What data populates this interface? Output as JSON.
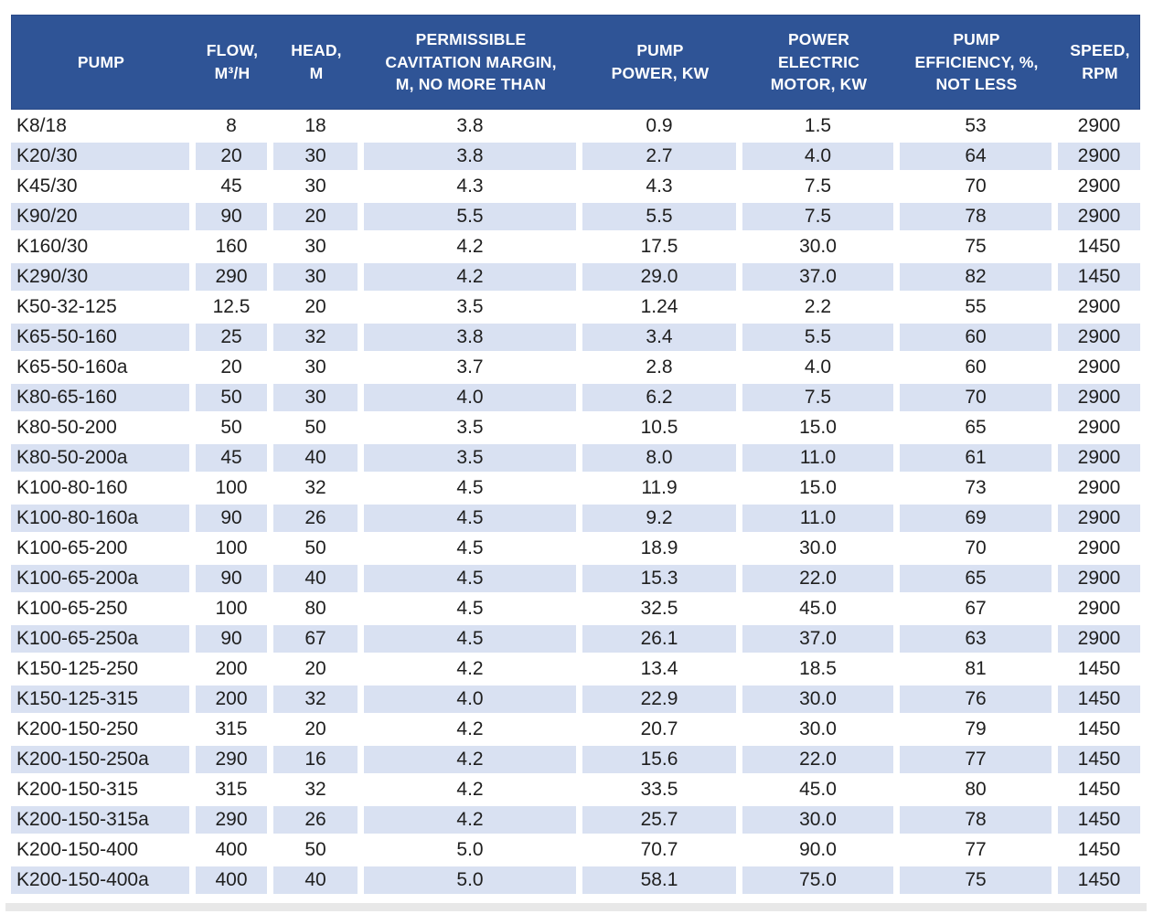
{
  "colors": {
    "header_bg": "#2F5496",
    "header_border": "#2A4A87",
    "header_text": "#FFFFFF",
    "row_bg": "#FFFFFF",
    "row_alt_bg": "#D9E1F2",
    "cell_text": "#1F1F1F",
    "footer_strip": "#E8E8E8"
  },
  "chart_data": {
    "type": "table",
    "columns": [
      {
        "key": "pump",
        "label": "PUMP"
      },
      {
        "key": "flow",
        "label": "FLOW,\nM³/H"
      },
      {
        "key": "head",
        "label": "HEAD,\nM"
      },
      {
        "key": "cavitation_margin",
        "label": "PERMISSIBLE\nCAVITATION MARGIN,\nM, NO MORE THAN"
      },
      {
        "key": "pump_power",
        "label": "PUMP\nPOWER, KW"
      },
      {
        "key": "motor_power",
        "label": "POWER\nELECTRIC\nMOTOR, KW"
      },
      {
        "key": "efficiency",
        "label": "PUMP\nEFFICIENCY, %,\nNOT LESS"
      },
      {
        "key": "speed",
        "label": "SPEED,\nRPM"
      }
    ],
    "rows": [
      [
        "K8/18",
        "8",
        "18",
        "3.8",
        "0.9",
        "1.5",
        "53",
        "2900"
      ],
      [
        "K20/30",
        "20",
        "30",
        "3.8",
        "2.7",
        "4.0",
        "64",
        "2900"
      ],
      [
        "K45/30",
        "45",
        "30",
        "4.3",
        "4.3",
        "7.5",
        "70",
        "2900"
      ],
      [
        "K90/20",
        "90",
        "20",
        "5.5",
        "5.5",
        "7.5",
        "78",
        "2900"
      ],
      [
        "K160/30",
        "160",
        "30",
        "4.2",
        "17.5",
        "30.0",
        "75",
        "1450"
      ],
      [
        "K290/30",
        "290",
        "30",
        "4.2",
        "29.0",
        "37.0",
        "82",
        "1450"
      ],
      [
        "K50-32-125",
        "12.5",
        "20",
        "3.5",
        "1.24",
        "2.2",
        "55",
        "2900"
      ],
      [
        "K65-50-160",
        "25",
        "32",
        "3.8",
        "3.4",
        "5.5",
        "60",
        "2900"
      ],
      [
        "K65-50-160a",
        "20",
        "30",
        "3.7",
        "2.8",
        "4.0",
        "60",
        "2900"
      ],
      [
        "K80-65-160",
        "50",
        "30",
        "4.0",
        "6.2",
        "7.5",
        "70",
        "2900"
      ],
      [
        "K80-50-200",
        "50",
        "50",
        "3.5",
        "10.5",
        "15.0",
        "65",
        "2900"
      ],
      [
        "K80-50-200a",
        "45",
        "40",
        "3.5",
        "8.0",
        "11.0",
        "61",
        "2900"
      ],
      [
        "K100-80-160",
        "100",
        "32",
        "4.5",
        "11.9",
        "15.0",
        "73",
        "2900"
      ],
      [
        "K100-80-160a",
        "90",
        "26",
        "4.5",
        "9.2",
        "11.0",
        "69",
        "2900"
      ],
      [
        "K100-65-200",
        "100",
        "50",
        "4.5",
        "18.9",
        "30.0",
        "70",
        "2900"
      ],
      [
        "K100-65-200a",
        "90",
        "40",
        "4.5",
        "15.3",
        "22.0",
        "65",
        "2900"
      ],
      [
        "K100-65-250",
        "100",
        "80",
        "4.5",
        "32.5",
        "45.0",
        "67",
        "2900"
      ],
      [
        "K100-65-250a",
        "90",
        "67",
        "4.5",
        "26.1",
        "37.0",
        "63",
        "2900"
      ],
      [
        "K150-125-250",
        "200",
        "20",
        "4.2",
        "13.4",
        "18.5",
        "81",
        "1450"
      ],
      [
        "K150-125-315",
        "200",
        "32",
        "4.0",
        "22.9",
        "30.0",
        "76",
        "1450"
      ],
      [
        "K200-150-250",
        "315",
        "20",
        "4.2",
        "20.7",
        "30.0",
        "79",
        "1450"
      ],
      [
        "K200-150-250a",
        "290",
        "16",
        "4.2",
        "15.6",
        "22.0",
        "77",
        "1450"
      ],
      [
        "K200-150-315",
        "315",
        "32",
        "4.2",
        "33.5",
        "45.0",
        "80",
        "1450"
      ],
      [
        "K200-150-315a",
        "290",
        "26",
        "4.2",
        "25.7",
        "30.0",
        "78",
        "1450"
      ],
      [
        "K200-150-400",
        "400",
        "50",
        "5.0",
        "70.7",
        "90.0",
        "77",
        "1450"
      ],
      [
        "K200-150-400a",
        "400",
        "40",
        "5.0",
        "58.1",
        "75.0",
        "75",
        "1450"
      ]
    ]
  }
}
